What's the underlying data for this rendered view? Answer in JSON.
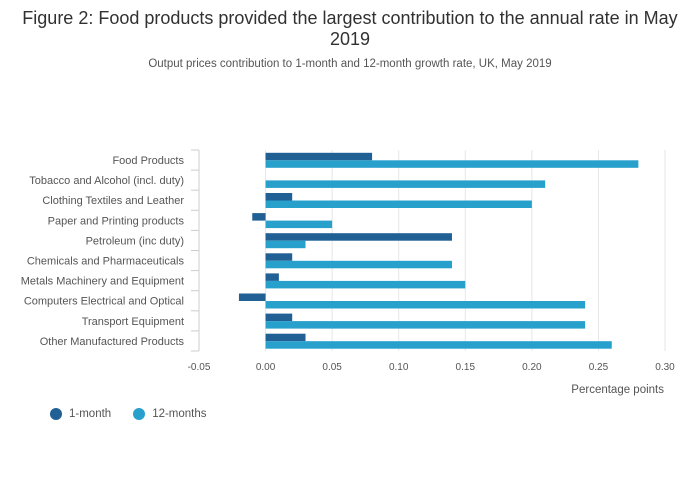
{
  "title": "Figure 2: Food products provided the largest contribution to the annual rate in May 2019",
  "subtitle": "Output prices contribution to 1-month and 12-month growth rate, UK, May 2019",
  "colors": {
    "one_month": "#206095",
    "twelve_months": "#27a0cc",
    "grid": "#e6e6e6",
    "axis": "#cccccc"
  },
  "chart_data": {
    "type": "bar",
    "orientation": "horizontal",
    "categories": [
      "Food Products",
      "Tobacco and Alcohol (incl. duty)",
      "Clothing Textiles and Leather",
      "Paper and Printing products",
      "Petroleum (inc duty)",
      "Chemicals and Pharmaceuticals",
      "Metals Machinery and Equipment",
      "Computers Electrical and Optical",
      "Transport Equipment",
      "Other Manufactured Products"
    ],
    "series": [
      {
        "name": "1-month",
        "values": [
          0.08,
          0.0,
          0.02,
          -0.01,
          0.14,
          0.02,
          0.01,
          -0.02,
          0.02,
          0.03
        ]
      },
      {
        "name": "12-months",
        "values": [
          0.28,
          0.21,
          0.2,
          0.05,
          0.03,
          0.14,
          0.15,
          0.24,
          0.24,
          0.26
        ]
      }
    ],
    "xlabel": "Percentage points",
    "xlim": [
      -0.05,
      0.3
    ],
    "xticks": [
      "-0.05",
      "0.00",
      "0.05",
      "0.10",
      "0.15",
      "0.20",
      "0.25",
      "0.30"
    ],
    "xtick_values": [
      -0.05,
      0.0,
      0.05,
      0.1,
      0.15,
      0.2,
      0.25,
      0.3
    ],
    "grid": true,
    "legend_position": "bottom-left"
  }
}
